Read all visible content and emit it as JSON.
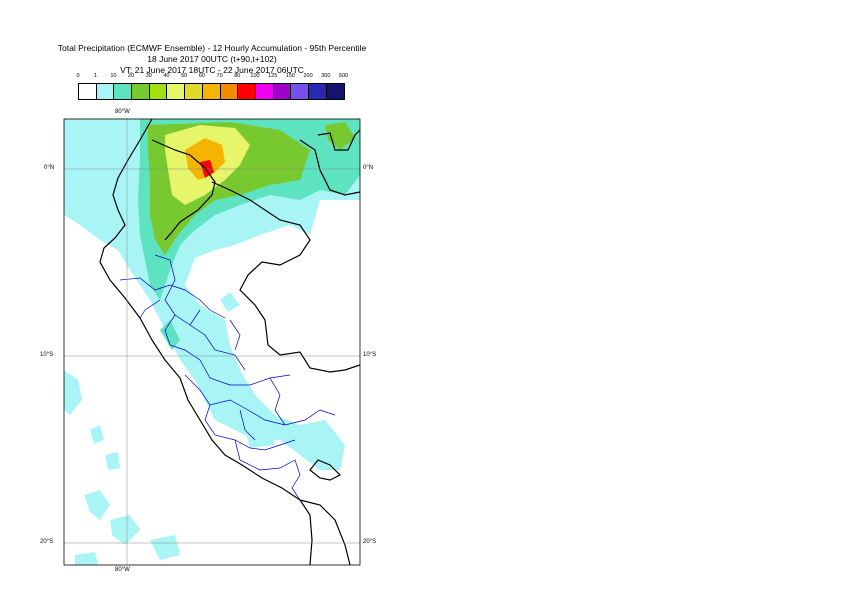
{
  "title": {
    "line1": "Total Precipitation (ECMWF Ensemble) - 12 Hourly Accumulation - 95th Percentile",
    "line2": "18 June 2017 00UTC (t+90,t+102)",
    "line3": "VT: 21 June 2017 18UTC - 22 June 2017 06UTC"
  },
  "legend": {
    "levels": [
      "0",
      "1",
      "10",
      "20",
      "30",
      "40",
      "50",
      "60",
      "70",
      "80",
      "100",
      "125",
      "150",
      "200",
      "300",
      "500"
    ],
    "colors": [
      "#ffffff",
      "#a9f5f5",
      "#5ee3c0",
      "#78c830",
      "#a2e00f",
      "#e6f56a",
      "#dcdc28",
      "#f5b400",
      "#f58c00",
      "#ff0000",
      "#f000f0",
      "#a000c8",
      "#7850f0",
      "#2828b4",
      "#14146e"
    ]
  },
  "map": {
    "lat_labels": {
      "top": "0°N",
      "middle": "10°S",
      "bottom": "20°S"
    },
    "lon_labels": {
      "top": "80°W",
      "bottom": "80°W"
    },
    "colors": {
      "light": "#a9f5f5",
      "teal": "#5ee3c0",
      "green": "#78c830",
      "lime": "#a2e00f",
      "yellow": "#e6f56a",
      "orange": "#f5b400",
      "red": "#ff0000",
      "coast": "#000000",
      "regions": "#0000cc"
    }
  }
}
